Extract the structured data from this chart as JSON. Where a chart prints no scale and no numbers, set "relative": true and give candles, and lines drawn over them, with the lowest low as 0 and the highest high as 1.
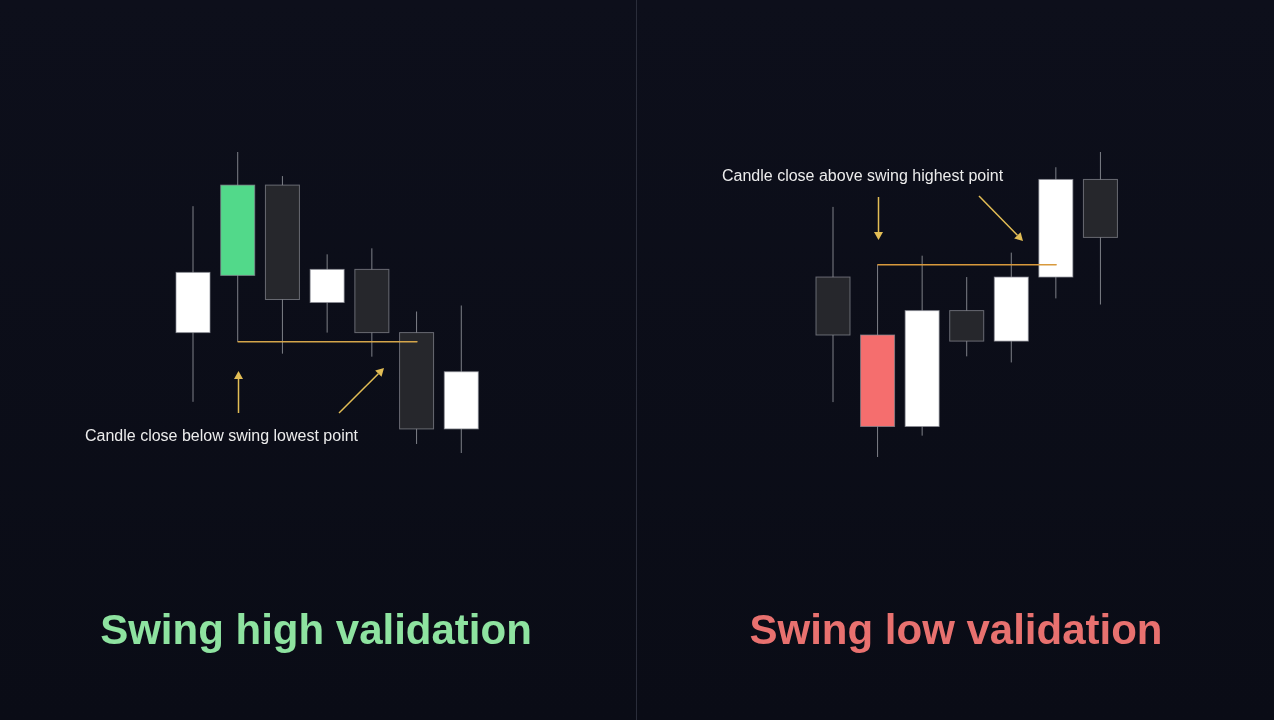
{
  "chart_data": [
    {
      "type": "candlestick",
      "title": "Swing high validation",
      "relative": true,
      "categories": [
        null,
        null,
        null,
        null,
        null,
        null,
        null
      ],
      "ohlc": [
        [
          0.4,
          0.82,
          0.17,
          0.6
        ],
        [
          0.59,
          1.0,
          0.37,
          0.89
        ],
        [
          0.89,
          0.92,
          0.33,
          0.51
        ],
        [
          0.5,
          0.66,
          0.4,
          0.61
        ],
        [
          0.61,
          0.68,
          0.32,
          0.4
        ],
        [
          0.4,
          0.47,
          0.03,
          0.08
        ],
        [
          0.08,
          0.49,
          0.0,
          0.27
        ]
      ],
      "colors": [
        "#ffffff",
        "#52d98a",
        "#26272c",
        "#ffffff",
        "#26272c",
        "#26272c",
        "#ffffff"
      ],
      "series": [
        {
          "type": "line",
          "color": "#d4a54a",
          "values": [
            null,
            0.37,
            0.37,
            0.37,
            0.37,
            0.37,
            null
          ]
        }
      ],
      "annotations": [
        "Candle close below swing lowest point"
      ]
    },
    {
      "type": "candlestick",
      "title": "Swing low validation",
      "relative": true,
      "categories": [
        null,
        null,
        null,
        null,
        null,
        null,
        null
      ],
      "ohlc": [
        [
          0.59,
          0.82,
          0.18,
          0.4
        ],
        [
          0.4,
          0.63,
          0.0,
          0.1
        ],
        [
          0.1,
          0.66,
          0.07,
          0.48
        ],
        [
          0.48,
          0.59,
          0.33,
          0.38
        ],
        [
          0.38,
          0.67,
          0.31,
          0.59
        ],
        [
          0.59,
          0.95,
          0.52,
          0.91
        ],
        [
          0.91,
          1.0,
          0.5,
          0.72
        ]
      ],
      "colors": [
        "#26272c",
        "#f56e6e",
        "#ffffff",
        "#26272c",
        "#ffffff",
        "#ffffff",
        "#26272c"
      ],
      "series": [
        {
          "type": "line",
          "color": "#d8993c",
          "values": [
            null,
            0.63,
            0.63,
            0.63,
            0.63,
            0.63,
            null
          ]
        }
      ],
      "annotations": [
        "Candle close above swing highest point"
      ]
    }
  ]
}
